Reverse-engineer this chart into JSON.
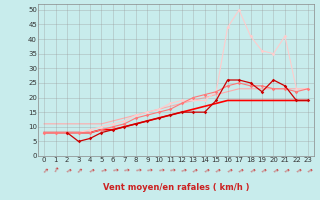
{
  "xlabel": "Vent moyen/en rafales ( km/h )",
  "bg_color": "#c8ecec",
  "grid_color": "#999999",
  "xlim": [
    -0.5,
    23.5
  ],
  "ylim": [
    0,
    52
  ],
  "yticks": [
    0,
    5,
    10,
    15,
    20,
    25,
    30,
    35,
    40,
    45,
    50
  ],
  "xticks": [
    0,
    1,
    2,
    3,
    4,
    5,
    6,
    7,
    8,
    9,
    10,
    11,
    12,
    13,
    14,
    15,
    16,
    17,
    18,
    19,
    20,
    21,
    22,
    23
  ],
  "series": [
    {
      "x": [
        0,
        1,
        2,
        3,
        4,
        5,
        6,
        7,
        8,
        9,
        10,
        11,
        12,
        13,
        14,
        15,
        16,
        17,
        18,
        19,
        20,
        21,
        22,
        23
      ],
      "y": [
        11,
        11,
        11,
        11,
        11,
        11,
        12,
        13,
        14,
        15,
        16,
        17,
        18,
        19,
        20,
        21,
        22,
        23,
        23,
        23,
        23,
        23,
        23,
        23
      ],
      "color": "#ffaaaa",
      "marker": null,
      "linewidth": 0.8,
      "zorder": 1
    },
    {
      "x": [
        0,
        1,
        2,
        3,
        4,
        5,
        6,
        7,
        8,
        9,
        10,
        11,
        12,
        13,
        14,
        15,
        16,
        17,
        18,
        19,
        20,
        21,
        22,
        23
      ],
      "y": [
        8,
        8,
        8,
        8,
        8,
        9,
        10,
        11,
        13,
        14,
        15,
        16,
        18,
        20,
        21,
        22,
        24,
        25,
        24,
        24,
        23,
        23,
        22,
        23
      ],
      "color": "#ff7777",
      "marker": "D",
      "markersize": 1.8,
      "linewidth": 0.8,
      "zorder": 3
    },
    {
      "x": [
        2,
        3,
        4,
        5,
        6,
        7,
        8,
        9,
        10,
        11,
        12,
        13,
        14,
        15,
        16,
        17,
        18,
        19,
        20,
        21,
        22,
        23
      ],
      "y": [
        8,
        5,
        6,
        8,
        9,
        10,
        11,
        12,
        13,
        14,
        15,
        15,
        15,
        19,
        26,
        26,
        25,
        22,
        26,
        24,
        19,
        19
      ],
      "color": "#cc0000",
      "marker": "D",
      "markersize": 1.8,
      "linewidth": 0.9,
      "zorder": 4
    },
    {
      "x": [
        0,
        1,
        2,
        3,
        4,
        5,
        6,
        7,
        8,
        9,
        10,
        11,
        12,
        13,
        14,
        15,
        16,
        17,
        18,
        19,
        20,
        21,
        22,
        23
      ],
      "y": [
        8,
        8,
        8,
        8,
        8,
        9,
        9,
        10,
        11,
        12,
        13,
        14,
        15,
        16,
        17,
        18,
        19,
        19,
        19,
        19,
        19,
        19,
        19,
        19
      ],
      "color": "#ff0000",
      "marker": null,
      "linewidth": 1.2,
      "zorder": 2
    },
    {
      "x": [
        0,
        1,
        2,
        3,
        4,
        5,
        6,
        7,
        8,
        9,
        10,
        11,
        12,
        13,
        14,
        15,
        16,
        17,
        18,
        19,
        20,
        21,
        22,
        23
      ],
      "y": [
        8,
        8,
        8,
        8,
        9,
        10,
        11,
        12,
        14,
        15,
        16,
        18,
        19,
        19,
        19,
        22,
        44,
        50,
        41,
        36,
        35,
        41,
        23,
        23
      ],
      "color": "#ffcccc",
      "marker": "D",
      "markersize": 1.8,
      "linewidth": 0.8,
      "zorder": 2
    }
  ],
  "arrow_angles": [
    45,
    60,
    30,
    45,
    30,
    20,
    10,
    10,
    10,
    10,
    10,
    10,
    20,
    30,
    30,
    30,
    30,
    30,
    30,
    30,
    30,
    30,
    30,
    30
  ]
}
